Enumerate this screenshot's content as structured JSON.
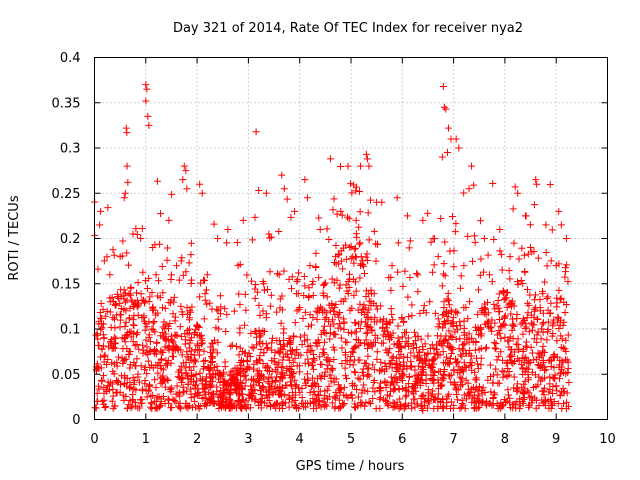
{
  "chart_data": {
    "type": "scatter",
    "title": "Day 321 of 2014, Rate Of TEC Index for receiver nya2",
    "xlabel": "GPS time / hours",
    "ylabel": "ROTI / TECUs",
    "xlim": [
      0,
      10
    ],
    "ylim": [
      0,
      0.4
    ],
    "xticks": [
      0,
      1,
      2,
      3,
      4,
      5,
      6,
      7,
      8,
      9,
      10
    ],
    "xtick_labels": [
      "0",
      "1",
      "2",
      "3",
      "4",
      "5",
      "6",
      "7",
      "8",
      "9",
      "10"
    ],
    "yticks": [
      0,
      0.05,
      0.1,
      0.15,
      0.2,
      0.25,
      0.3,
      0.35,
      0.4
    ],
    "ytick_labels": [
      "0",
      "0.05",
      "0.1",
      "0.15",
      "0.2",
      "0.25",
      "0.3",
      "0.35",
      "0.4"
    ],
    "grid": true,
    "marker": "+",
    "color": "#ff0000",
    "series": [
      {
        "name": "ROTI",
        "description_of_density": "dense cloud of ~10000 samples, x from 0 to 9.25 h, y mostly 0.01-0.15 TECU/s",
        "points": [
          [
            1.0,
            0.37
          ],
          [
            1.02,
            0.365
          ],
          [
            1.0,
            0.352
          ],
          [
            1.04,
            0.335
          ],
          [
            1.06,
            0.325
          ],
          [
            0.62,
            0.322
          ],
          [
            0.63,
            0.317
          ],
          [
            0.65,
            0.262
          ],
          [
            0.6,
            0.25
          ],
          [
            0.58,
            0.245
          ],
          [
            3.15,
            0.318
          ],
          [
            3.2,
            0.253
          ],
          [
            4.6,
            0.288
          ],
          [
            5.3,
            0.293
          ],
          [
            5.32,
            0.288
          ],
          [
            5.35,
            0.28
          ],
          [
            6.8,
            0.368
          ],
          [
            6.82,
            0.345
          ],
          [
            6.85,
            0.343
          ],
          [
            6.9,
            0.322
          ],
          [
            6.95,
            0.31
          ],
          [
            7.05,
            0.31
          ],
          [
            7.1,
            0.3
          ],
          [
            6.78,
            0.29
          ],
          [
            6.88,
            0.295
          ],
          [
            1.75,
            0.28
          ],
          [
            1.78,
            0.275
          ],
          [
            1.72,
            0.265
          ],
          [
            1.8,
            0.255
          ],
          [
            8.6,
            0.265
          ],
          [
            8.62,
            0.26
          ],
          [
            8.2,
            0.257
          ],
          [
            8.25,
            0.25
          ],
          [
            3.65,
            0.27
          ],
          [
            3.7,
            0.255
          ],
          [
            4.1,
            0.265
          ],
          [
            4.15,
            0.245
          ],
          [
            2.05,
            0.26
          ],
          [
            2.1,
            0.25
          ],
          [
            7.35,
            0.28
          ],
          [
            7.3,
            0.255
          ],
          [
            9.05,
            0.23
          ],
          [
            9.1,
            0.215
          ],
          [
            5.9,
            0.245
          ],
          [
            5.5,
            0.24
          ],
          [
            0.12,
            0.23
          ],
          [
            0.1,
            0.215
          ],
          [
            0.75,
            0.205
          ],
          [
            0.9,
            0.2
          ],
          [
            1.45,
            0.22
          ],
          [
            2.4,
            0.2
          ],
          [
            2.6,
            0.21
          ],
          [
            2.9,
            0.22
          ],
          [
            3.4,
            0.205
          ],
          [
            3.9,
            0.23
          ],
          [
            4.4,
            0.21
          ],
          [
            4.8,
            0.23
          ],
          [
            5.1,
            0.22
          ],
          [
            5.6,
            0.24
          ],
          [
            6.1,
            0.225
          ],
          [
            6.4,
            0.22
          ],
          [
            6.6,
            0.2
          ],
          [
            7.6,
            0.2
          ],
          [
            7.9,
            0.21
          ],
          [
            8.4,
            0.225
          ],
          [
            8.8,
            0.215
          ],
          [
            9.2,
            0.2
          ],
          [
            0.3,
            0.16
          ],
          [
            0.5,
            0.18
          ],
          [
            1.2,
            0.16
          ],
          [
            1.6,
            0.17
          ],
          [
            2.2,
            0.16
          ],
          [
            2.8,
            0.17
          ],
          [
            3.3,
            0.15
          ],
          [
            3.6,
            0.16
          ],
          [
            4.2,
            0.17
          ],
          [
            4.7,
            0.18
          ],
          [
            5.2,
            0.18
          ],
          [
            5.8,
            0.17
          ],
          [
            6.3,
            0.16
          ],
          [
            6.7,
            0.18
          ],
          [
            7.2,
            0.17
          ],
          [
            7.7,
            0.16
          ],
          [
            8.1,
            0.18
          ],
          [
            8.5,
            0.19
          ],
          [
            9.0,
            0.17
          ],
          [
            0.05,
            0.02
          ],
          [
            0.4,
            0.015
          ],
          [
            1.3,
            0.02
          ],
          [
            2.5,
            0.02
          ],
          [
            3.5,
            0.015
          ],
          [
            4.3,
            0.018
          ],
          [
            5.7,
            0.02
          ],
          [
            6.4,
            0.01
          ],
          [
            7.5,
            0.02
          ],
          [
            8.3,
            0.015
          ],
          [
            9.2,
            0.012
          ]
        ]
      }
    ]
  }
}
